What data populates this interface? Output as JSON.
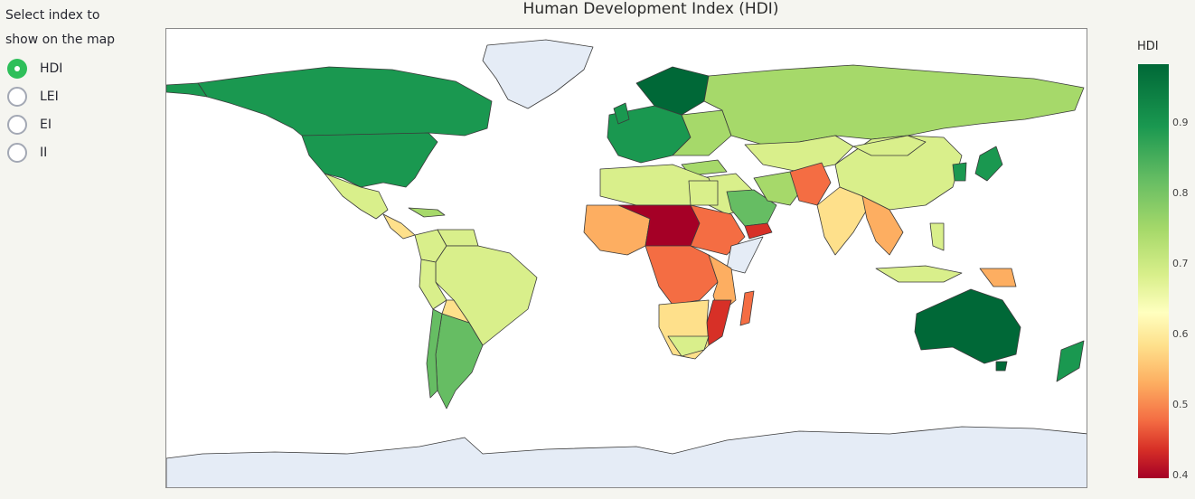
{
  "sidebar": {
    "prompt_line1": "Select index to",
    "prompt_line2": "show on the map",
    "options": [
      {
        "label": "HDI",
        "selected": true
      },
      {
        "label": "LEI",
        "selected": false
      },
      {
        "label": "EI",
        "selected": false
      },
      {
        "label": "II",
        "selected": false
      }
    ]
  },
  "map": {
    "title": "Human Development Index (HDI)",
    "colorbar": {
      "title": "HDI",
      "ticks": [
        "0.9",
        "0.8",
        "0.7",
        "0.6",
        "0.5",
        "0.4"
      ]
    },
    "colors": {
      "very_high": "#1a9850",
      "top": "#006837",
      "high": "#a6d96a",
      "upper_mid": "#d9ef8b",
      "medium": "#fee08b",
      "low_mid": "#fdae61",
      "low": "#f46d43",
      "very_low": "#d73027",
      "lowest": "#a50026",
      "no_data": "#e5ecf6",
      "ocean": "#ffffff"
    }
  }
}
